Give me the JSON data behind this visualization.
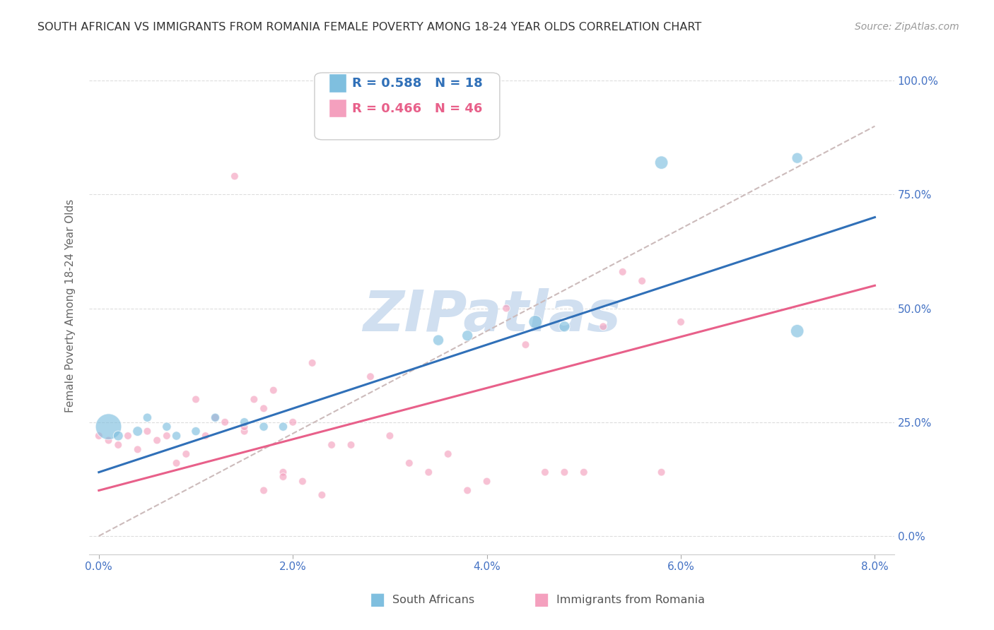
{
  "title": "SOUTH AFRICAN VS IMMIGRANTS FROM ROMANIA FEMALE POVERTY AMONG 18-24 YEAR OLDS CORRELATION CHART",
  "source": "Source: ZipAtlas.com",
  "ylabel": "Female Poverty Among 18-24 Year Olds",
  "blue_label": "South Africans",
  "pink_label": "Immigrants from Romania",
  "blue_R": 0.588,
  "blue_N": 18,
  "pink_R": 0.466,
  "pink_N": 46,
  "blue_color": "#7fbfdf",
  "pink_color": "#f4a0be",
  "blue_line_color": "#3070b8",
  "pink_line_color": "#e8608a",
  "dashed_line_color": "#ccbbbb",
  "watermark_color": "#d0dff0",
  "axis_label_color": "#4472c4",
  "grid_color": "#dddddd",
  "background_color": "#ffffff",
  "xlim": [
    0.0,
    0.08
  ],
  "ylim": [
    0.0,
    1.0
  ],
  "xlabel_vals": [
    0.0,
    0.02,
    0.04,
    0.06,
    0.08
  ],
  "xlabel_ticks": [
    "0.0%",
    "2.0%",
    "4.0%",
    "6.0%",
    "8.0%"
  ],
  "ylabel_vals": [
    0.0,
    0.25,
    0.5,
    0.75,
    1.0
  ],
  "ylabel_ticks": [
    "0.0%",
    "25.0%",
    "50.0%",
    "75.0%",
    "100.0%"
  ],
  "blue_line_x": [
    0.0,
    0.08
  ],
  "blue_line_y": [
    0.14,
    0.7
  ],
  "pink_line_x": [
    0.0,
    0.08
  ],
  "pink_line_y": [
    0.1,
    0.55
  ],
  "dash_line_x": [
    0.0,
    0.08
  ],
  "dash_line_y": [
    0.0,
    0.9
  ],
  "blue_x": [
    0.001,
    0.002,
    0.004,
    0.005,
    0.007,
    0.008,
    0.01,
    0.012,
    0.015,
    0.017,
    0.019,
    0.035,
    0.038,
    0.045,
    0.048,
    0.058,
    0.072,
    0.072
  ],
  "blue_y": [
    0.24,
    0.22,
    0.23,
    0.26,
    0.24,
    0.22,
    0.23,
    0.26,
    0.25,
    0.24,
    0.24,
    0.43,
    0.44,
    0.47,
    0.46,
    0.82,
    0.45,
    0.83
  ],
  "blue_sizes": [
    700,
    100,
    100,
    80,
    80,
    80,
    80,
    80,
    80,
    80,
    80,
    120,
    120,
    180,
    120,
    180,
    180,
    120
  ],
  "pink_x": [
    0.0,
    0.001,
    0.002,
    0.003,
    0.004,
    0.005,
    0.006,
    0.007,
    0.008,
    0.009,
    0.01,
    0.011,
    0.012,
    0.013,
    0.014,
    0.015,
    0.016,
    0.017,
    0.018,
    0.019,
    0.02,
    0.022,
    0.024,
    0.026,
    0.028,
    0.03,
    0.032,
    0.034,
    0.036,
    0.038,
    0.04,
    0.042,
    0.044,
    0.046,
    0.048,
    0.05,
    0.052,
    0.054,
    0.056,
    0.058,
    0.06,
    0.015,
    0.017,
    0.019,
    0.021,
    0.023
  ],
  "pink_y": [
    0.22,
    0.21,
    0.2,
    0.22,
    0.19,
    0.23,
    0.21,
    0.22,
    0.16,
    0.18,
    0.3,
    0.22,
    0.26,
    0.25,
    0.79,
    0.23,
    0.3,
    0.28,
    0.32,
    0.14,
    0.25,
    0.38,
    0.2,
    0.2,
    0.35,
    0.22,
    0.16,
    0.14,
    0.18,
    0.1,
    0.12,
    0.5,
    0.42,
    0.14,
    0.14,
    0.14,
    0.46,
    0.58,
    0.56,
    0.14,
    0.47,
    0.24,
    0.1,
    0.13,
    0.12,
    0.09
  ],
  "pink_sizes": [
    60,
    60,
    60,
    60,
    60,
    60,
    60,
    60,
    60,
    60,
    60,
    60,
    60,
    60,
    60,
    60,
    60,
    60,
    60,
    60,
    60,
    60,
    60,
    60,
    60,
    60,
    60,
    60,
    60,
    60,
    60,
    60,
    60,
    60,
    60,
    60,
    60,
    60,
    60,
    60,
    60,
    60,
    60,
    60,
    60,
    60
  ]
}
